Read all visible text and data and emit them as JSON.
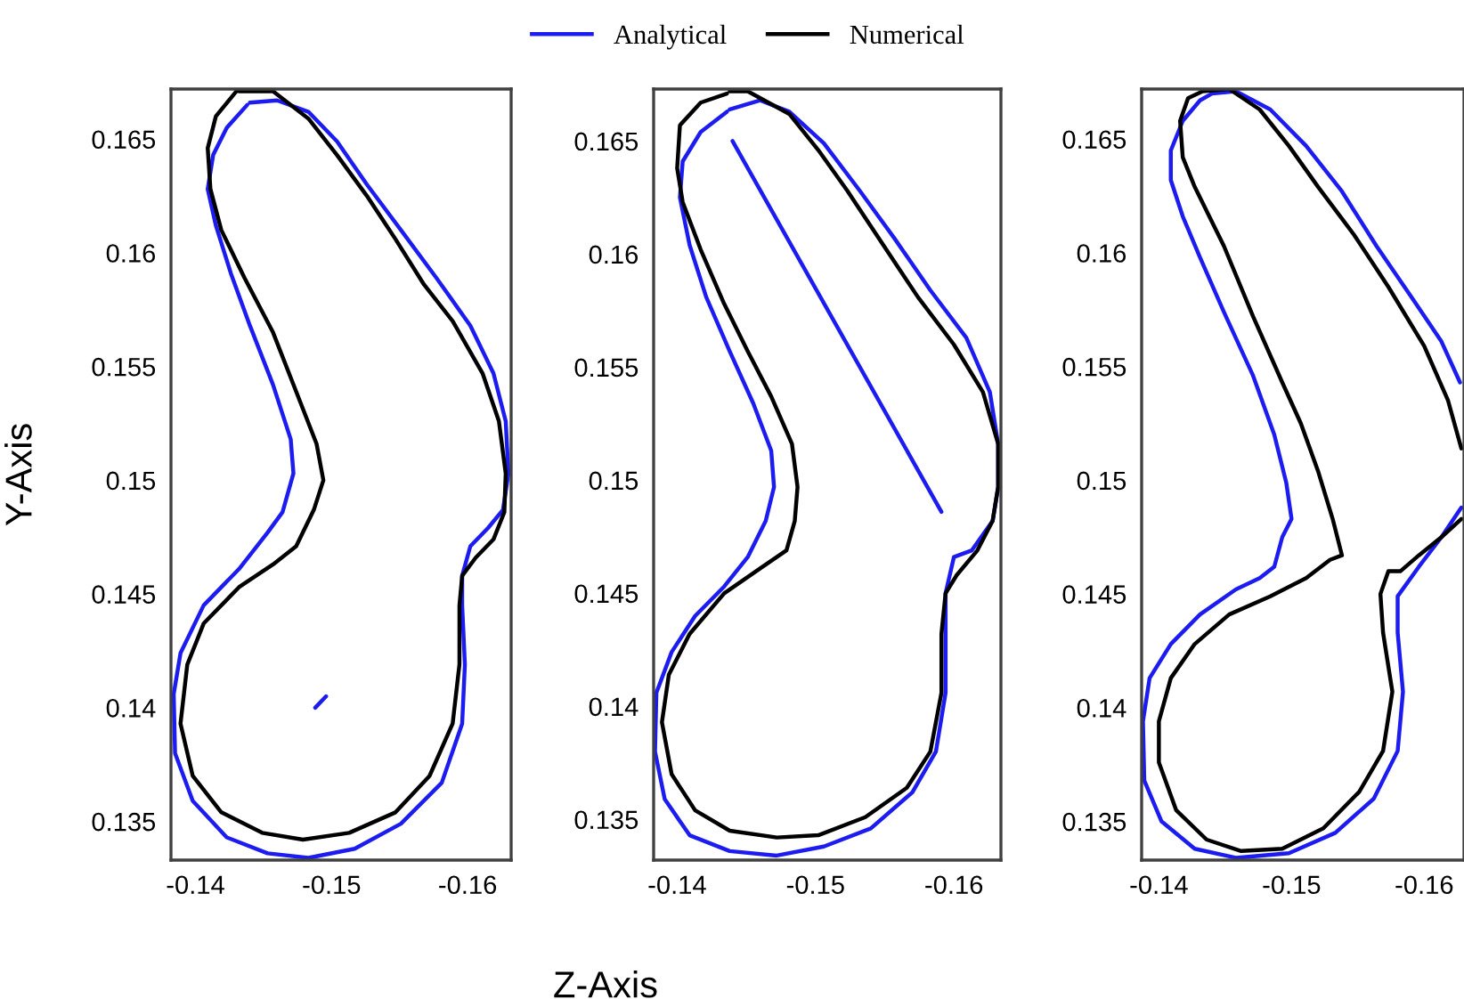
{
  "chart_data": [
    {
      "type": "line",
      "xlabel": "Z-Axis",
      "ylabel": "Y-Axis",
      "legend": "top",
      "grid": false,
      "marker": "none",
      "line_style": "solid",
      "xlim": [
        -0.1382,
        -0.1632
      ],
      "ylim": [
        0.1333,
        0.1672
      ],
      "xticks": [
        -0.14,
        -0.15,
        -0.16
      ],
      "yticks": [
        0.135,
        0.14,
        0.145,
        0.15,
        0.155,
        0.16,
        0.165
      ],
      "series": [
        {
          "name": "Analytical",
          "color": "#1c1cf0",
          "x": [
            -0.144,
            -0.146,
            -0.1483,
            -0.1504,
            -0.1526,
            -0.1551,
            -0.1577,
            -0.1602,
            -0.1619,
            -0.1628,
            -0.163,
            -0.1626,
            -0.1615,
            -0.1602,
            -0.1596,
            -0.1596,
            -0.1598,
            -0.1596,
            -0.1581,
            -0.1551,
            -0.1517,
            -0.1483,
            -0.1453,
            -0.1423,
            -0.1398,
            -0.1385,
            -0.1384,
            -0.1389,
            -0.1406,
            -0.1432,
            -0.1453,
            -0.1464,
            -0.1472,
            -0.147,
            -0.1457,
            -0.144,
            -0.1426,
            -0.1415,
            -0.1409,
            -0.1413,
            -0.1423,
            -0.1438,
            null,
            -0.1488,
            -0.1496
          ],
          "values": [
            0.1666,
            0.1667,
            0.1662,
            0.1649,
            0.163,
            0.161,
            0.1589,
            0.1568,
            0.1547,
            0.1526,
            0.1503,
            0.1487,
            0.1479,
            0.1471,
            0.1458,
            0.1445,
            0.1419,
            0.1393,
            0.1367,
            0.1349,
            0.1338,
            0.1334,
            0.1336,
            0.1343,
            0.1359,
            0.138,
            0.1406,
            0.1424,
            0.1445,
            0.1461,
            0.1477,
            0.1486,
            0.1503,
            0.1518,
            0.1542,
            0.1568,
            0.1591,
            0.1612,
            0.1628,
            0.1643,
            0.1655,
            0.1665,
            null,
            0.14,
            0.1405
          ]
        },
        {
          "name": "Numerical",
          "color": "#000000",
          "x": [
            -0.1432,
            -0.1457,
            -0.1483,
            -0.1504,
            -0.1526,
            -0.1547,
            -0.1568,
            -0.1589,
            -0.1611,
            -0.1623,
            -0.1628,
            -0.1627,
            -0.1619,
            -0.1606,
            -0.1596,
            -0.1594,
            -0.1594,
            -0.1589,
            -0.1572,
            -0.1547,
            -0.1513,
            -0.1479,
            -0.1449,
            -0.1419,
            -0.1398,
            -0.1389,
            -0.1394,
            -0.1406,
            -0.1432,
            -0.1457,
            -0.1474,
            -0.1487,
            -0.1494,
            -0.1489,
            -0.1474,
            -0.1457,
            -0.1436,
            -0.1419,
            -0.1411,
            -0.1409,
            -0.1415,
            -0.143
          ],
          "values": [
            0.1671,
            0.1671,
            0.1659,
            0.1643,
            0.1625,
            0.1606,
            0.1586,
            0.157,
            0.1547,
            0.1526,
            0.1503,
            0.1486,
            0.1474,
            0.1466,
            0.1458,
            0.1445,
            0.1419,
            0.1393,
            0.137,
            0.1354,
            0.1345,
            0.1342,
            0.1345,
            0.1354,
            0.137,
            0.1393,
            0.1419,
            0.1437,
            0.1453,
            0.1463,
            0.1471,
            0.1487,
            0.15,
            0.1516,
            0.1539,
            0.1565,
            0.1589,
            0.161,
            0.1628,
            0.1646,
            0.166,
            0.1671
          ]
        }
      ]
    },
    {
      "type": "line",
      "grid": false,
      "marker": "none",
      "line_style": "solid",
      "xlim": [
        -0.1383,
        -0.1634
      ],
      "ylim": [
        0.1332,
        0.1673
      ],
      "xticks": [
        -0.14,
        -0.15,
        -0.16
      ],
      "yticks": [
        0.135,
        0.14,
        0.145,
        0.15,
        0.155,
        0.16,
        0.165
      ],
      "series": [
        {
          "color": "#1c1cf0",
          "x": [
            -0.1438,
            -0.146,
            -0.1481,
            -0.1506,
            -0.1532,
            -0.1557,
            -0.1583,
            -0.1609,
            -0.1626,
            -0.1632,
            -0.1632,
            -0.1628,
            -0.1613,
            -0.16,
            -0.1594,
            -0.1594,
            -0.1594,
            -0.1587,
            -0.157,
            -0.154,
            -0.1506,
            -0.1472,
            -0.1438,
            -0.1409,
            -0.1391,
            -0.1384,
            -0.1385,
            -0.1396,
            -0.1413,
            -0.1434,
            -0.1451,
            -0.1464,
            -0.147,
            -0.1468,
            -0.1455,
            -0.1438,
            -0.1421,
            -0.1409,
            -0.1402,
            -0.1404,
            -0.1417,
            -0.1436,
            null,
            -0.144,
            -0.1591
          ],
          "values": [
            0.1664,
            0.1668,
            0.1663,
            0.1649,
            0.1628,
            0.1607,
            0.1584,
            0.1563,
            0.1539,
            0.1516,
            0.1497,
            0.1482,
            0.1469,
            0.1466,
            0.145,
            0.1432,
            0.1406,
            0.138,
            0.1362,
            0.1346,
            0.1338,
            0.1334,
            0.1336,
            0.1343,
            0.1359,
            0.138,
            0.1406,
            0.1424,
            0.144,
            0.1453,
            0.1466,
            0.1482,
            0.1497,
            0.1513,
            0.1534,
            0.1557,
            0.1581,
            0.1604,
            0.1625,
            0.1641,
            0.1654,
            0.1663,
            null,
            0.165,
            0.1486
          ]
        },
        {
          "color": "#000000",
          "x": [
            -0.1438,
            -0.1451,
            -0.1481,
            -0.1502,
            -0.1523,
            -0.1549,
            -0.1574,
            -0.16,
            -0.1621,
            -0.1632,
            -0.1632,
            -0.1628,
            -0.1617,
            -0.1602,
            -0.1594,
            -0.1591,
            -0.1591,
            -0.1583,
            -0.1566,
            -0.1536,
            -0.1502,
            -0.1472,
            -0.1438,
            -0.1413,
            -0.1396,
            -0.1389,
            -0.1394,
            -0.1409,
            -0.1434,
            -0.146,
            -0.1479,
            -0.1485,
            -0.1487,
            -0.1483,
            -0.1468,
            -0.1451,
            -0.1434,
            -0.1417,
            -0.1404,
            -0.14,
            -0.1402,
            -0.1417,
            -0.1436
          ],
          "values": [
            0.1672,
            0.1672,
            0.1662,
            0.1646,
            0.1628,
            0.1604,
            0.1581,
            0.156,
            0.1539,
            0.1516,
            0.1497,
            0.1482,
            0.1469,
            0.1458,
            0.145,
            0.1432,
            0.1406,
            0.138,
            0.1364,
            0.1351,
            0.1343,
            0.1342,
            0.1345,
            0.1354,
            0.137,
            0.1393,
            0.1414,
            0.1432,
            0.145,
            0.1461,
            0.1469,
            0.1482,
            0.1497,
            0.1516,
            0.1537,
            0.1557,
            0.1578,
            0.1602,
            0.1623,
            0.1638,
            0.1657,
            0.1667,
            0.1671
          ]
        }
      ]
    },
    {
      "type": "line",
      "grid": false,
      "marker": "none",
      "line_style": "solid",
      "xlim": [
        -0.1387,
        -0.163
      ],
      "ylim": [
        0.1333,
        0.1672
      ],
      "xticks": [
        -0.14,
        -0.15,
        -0.16
      ],
      "yticks": [
        0.135,
        0.14,
        0.145,
        0.15,
        0.155,
        0.16,
        0.165
      ],
      "series": [
        {
          "color": "#1c1cf0",
          "x": [
            -0.144,
            -0.1458,
            -0.1484,
            -0.1511,
            -0.1538,
            -0.1564,
            -0.1591,
            -0.1613,
            -0.1627,
            null,
            -0.1628,
            -0.1613,
            -0.1596,
            -0.158,
            -0.158,
            -0.1584,
            -0.158,
            -0.1562,
            -0.1533,
            -0.1498,
            -0.1458,
            -0.1427,
            -0.1402,
            -0.1389,
            -0.1388,
            -0.1393,
            -0.1409,
            -0.1431,
            -0.1458,
            -0.1476,
            -0.1487,
            -0.1493,
            -0.15,
            -0.1496,
            -0.1487,
            -0.1471,
            -0.1449,
            -0.1431,
            -0.1418,
            -0.1409,
            -0.1409,
            -0.1418,
            -0.1431,
            -0.144
          ],
          "values": [
            0.167,
            0.1671,
            0.1663,
            0.1647,
            0.1627,
            0.1603,
            0.158,
            0.1561,
            0.1543,
            null,
            0.1488,
            0.1475,
            0.1462,
            0.1449,
            0.1433,
            0.1407,
            0.1381,
            0.136,
            0.1345,
            0.1336,
            0.1334,
            0.1338,
            0.135,
            0.1368,
            0.1394,
            0.1413,
            0.1428,
            0.1441,
            0.1452,
            0.1457,
            0.1462,
            0.1475,
            0.1483,
            0.1499,
            0.152,
            0.1546,
            0.1574,
            0.1598,
            0.1616,
            0.1632,
            0.1645,
            0.1658,
            0.1667,
            0.167
          ]
        },
        {
          "color": "#000000",
          "x": [
            -0.1433,
            -0.1453,
            -0.1476,
            -0.1498,
            -0.152,
            -0.1547,
            -0.1573,
            -0.16,
            -0.1618,
            -0.1628,
            null,
            -0.1628,
            -0.1613,
            -0.1596,
            -0.1582,
            -0.1573,
            -0.1567,
            -0.1569,
            -0.1576,
            -0.1569,
            -0.1551,
            -0.1524,
            -0.1493,
            -0.1462,
            -0.1436,
            -0.1413,
            -0.14,
            -0.14,
            -0.1409,
            -0.1427,
            -0.1453,
            -0.1484,
            -0.1511,
            -0.1529,
            -0.1538,
            -0.1531,
            -0.152,
            -0.1507,
            -0.1493,
            -0.1471,
            -0.1449,
            -0.1427,
            -0.1418,
            -0.1416,
            -0.1422,
            -0.1433
          ],
          "values": [
            0.1671,
            0.1672,
            0.1663,
            0.1647,
            0.1629,
            0.1608,
            0.1585,
            0.1559,
            0.1535,
            0.1514,
            null,
            0.1483,
            0.1475,
            0.1467,
            0.146,
            0.146,
            0.145,
            0.1433,
            0.1407,
            0.1381,
            0.1363,
            0.1347,
            0.1338,
            0.1337,
            0.1342,
            0.1355,
            0.1376,
            0.1394,
            0.1413,
            0.1428,
            0.1441,
            0.1449,
            0.1457,
            0.1465,
            0.1467,
            0.1483,
            0.1504,
            0.1525,
            0.1543,
            0.1572,
            0.1603,
            0.1629,
            0.1642,
            0.1658,
            0.1668,
            0.1671
          ]
        }
      ]
    }
  ]
}
